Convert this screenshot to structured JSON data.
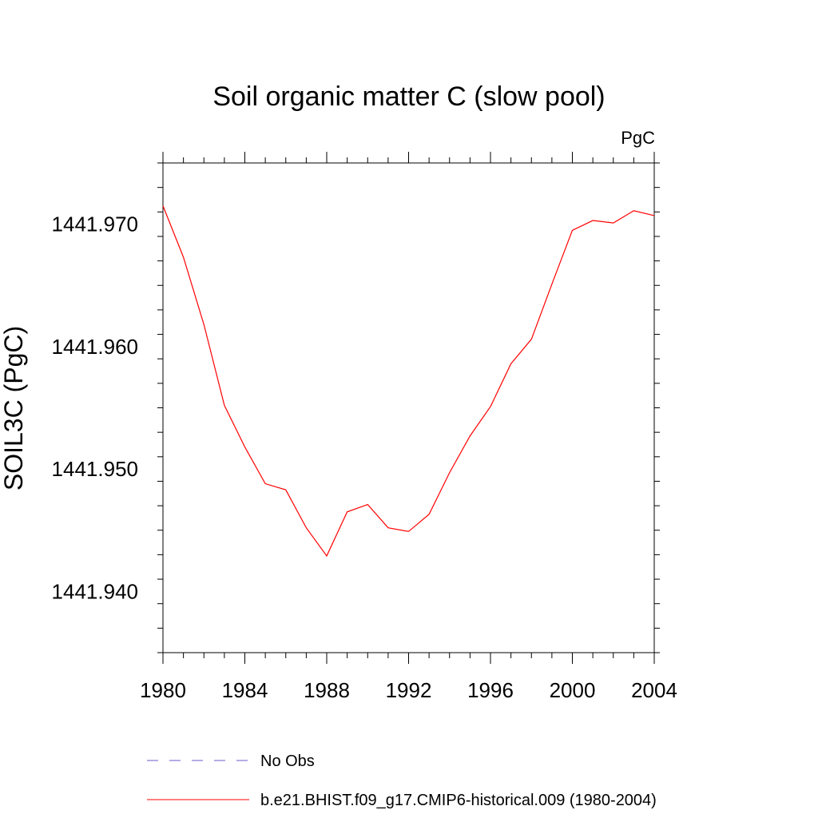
{
  "chart_data": {
    "type": "line",
    "title": "Soil organic matter C (slow pool)",
    "units": "PgC",
    "ylabel": "SOIL3C  (PgC)",
    "xlabel": "",
    "xlim": [
      1980,
      2004
    ],
    "ylim": [
      1441.935,
      1441.975
    ],
    "xticks": [
      1980,
      1984,
      1988,
      1992,
      1996,
      2000,
      2004
    ],
    "yticks": [
      1441.94,
      1441.95,
      1441.96,
      1441.97
    ],
    "ytick_labels": [
      "1441.940",
      "1441.950",
      "1441.960",
      "1441.970"
    ],
    "y_minor_step": 0.002,
    "x_minor_step": 1,
    "grid": false,
    "legend_position": "bottom",
    "series": [
      {
        "name": "No Obs",
        "color": "#6a5acd",
        "dash": "dashed",
        "values": []
      },
      {
        "name": "b.e21.BHIST.f09_g17.CMIP6-historical.009 (1980-2004)",
        "color": "#ff0000",
        "dash": "solid",
        "x": [
          1980,
          1981,
          1982,
          1983,
          1984,
          1985,
          1986,
          1987,
          1988,
          1989,
          1990,
          1991,
          1992,
          1993,
          1994,
          1995,
          1996,
          1997,
          1998,
          1999,
          2000,
          2001,
          2002,
          2003,
          2004
        ],
        "values": [
          1441.9715,
          1441.9673,
          1441.9618,
          1441.9552,
          1441.9518,
          1441.9488,
          1441.9483,
          1441.9452,
          1441.9429,
          1441.9465,
          1441.9471,
          1441.9452,
          1441.9449,
          1441.9463,
          1441.9497,
          1441.9527,
          1441.9551,
          1441.9586,
          1441.9606,
          1441.9651,
          1441.9695,
          1441.9703,
          1441.9701,
          1441.9711,
          1441.9707
        ]
      }
    ]
  }
}
